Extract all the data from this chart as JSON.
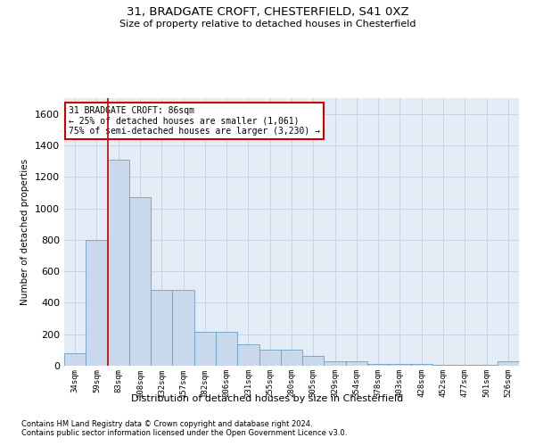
{
  "title1": "31, BRADGATE CROFT, CHESTERFIELD, S41 0XZ",
  "title2": "Size of property relative to detached houses in Chesterfield",
  "xlabel": "Distribution of detached houses by size in Chesterfield",
  "ylabel": "Number of detached properties",
  "footnote1": "Contains HM Land Registry data © Crown copyright and database right 2024.",
  "footnote2": "Contains public sector information licensed under the Open Government Licence v3.0.",
  "annotation_title": "31 BRADGATE CROFT: 86sqm",
  "annotation_line1": "← 25% of detached houses are smaller (1,061)",
  "annotation_line2": "75% of semi-detached houses are larger (3,230) →",
  "bar_color": "#c9d9eb",
  "bar_edge_color": "#6b9fc8",
  "marker_line_color": "#cc0000",
  "categories": [
    "34sqm",
    "59sqm",
    "83sqm",
    "108sqm",
    "132sqm",
    "157sqm",
    "182sqm",
    "206sqm",
    "231sqm",
    "255sqm",
    "280sqm",
    "305sqm",
    "329sqm",
    "354sqm",
    "378sqm",
    "403sqm",
    "428sqm",
    "452sqm",
    "477sqm",
    "501sqm",
    "526sqm"
  ],
  "values": [
    80,
    800,
    1310,
    1070,
    480,
    480,
    215,
    215,
    135,
    100,
    100,
    60,
    30,
    30,
    10,
    10,
    10,
    5,
    5,
    5,
    30
  ],
  "marker_bin_index": 2,
  "ylim": [
    0,
    1700
  ],
  "yticks": [
    0,
    200,
    400,
    600,
    800,
    1000,
    1200,
    1400,
    1600
  ],
  "grid_color": "#c8d4e0",
  "bg_color": "#e4ecf5"
}
